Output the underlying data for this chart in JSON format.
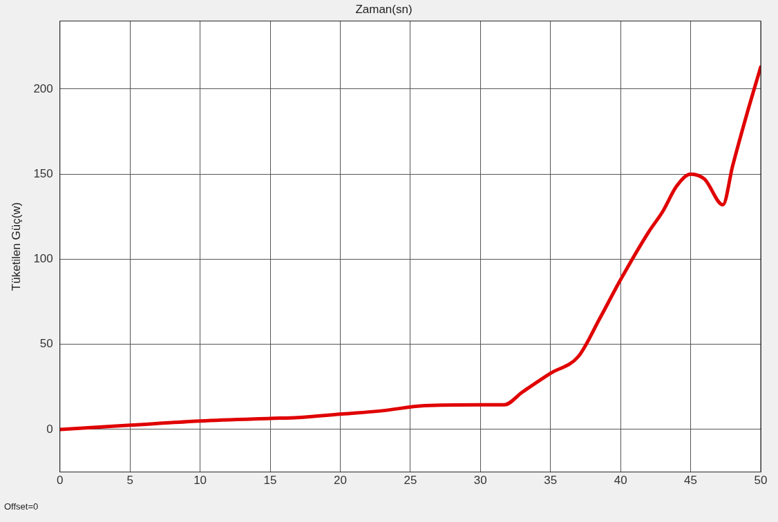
{
  "chart_data": {
    "type": "line",
    "title": "Zaman(sn)",
    "ylabel": "Tüketilen Güç(w)",
    "annotations": [
      "Offset=0"
    ],
    "x": [
      0,
      5,
      10,
      15,
      17,
      20,
      23,
      26,
      30,
      31.7,
      33,
      35,
      37,
      38.5,
      40,
      42,
      43,
      44,
      45,
      46,
      47.3,
      48,
      49,
      50
    ],
    "series": [
      {
        "color": "#e00000",
        "values": [
          0,
          2.5,
          5,
          6.5,
          7,
          9,
          11,
          14,
          14.5,
          14.5,
          22,
          33,
          43,
          65,
          88,
          116,
          128,
          143,
          150,
          147,
          132,
          155,
          185,
          213
        ]
      }
    ],
    "xlim": [
      0,
      50
    ],
    "xticks": [
      0,
      5,
      10,
      15,
      20,
      25,
      30,
      35,
      40,
      45,
      50
    ],
    "ylim": [
      -25,
      240
    ],
    "yticks": [
      0,
      50,
      100,
      150,
      200
    ],
    "grid": true,
    "legend": false,
    "marker": "none",
    "line_style": "solid"
  }
}
